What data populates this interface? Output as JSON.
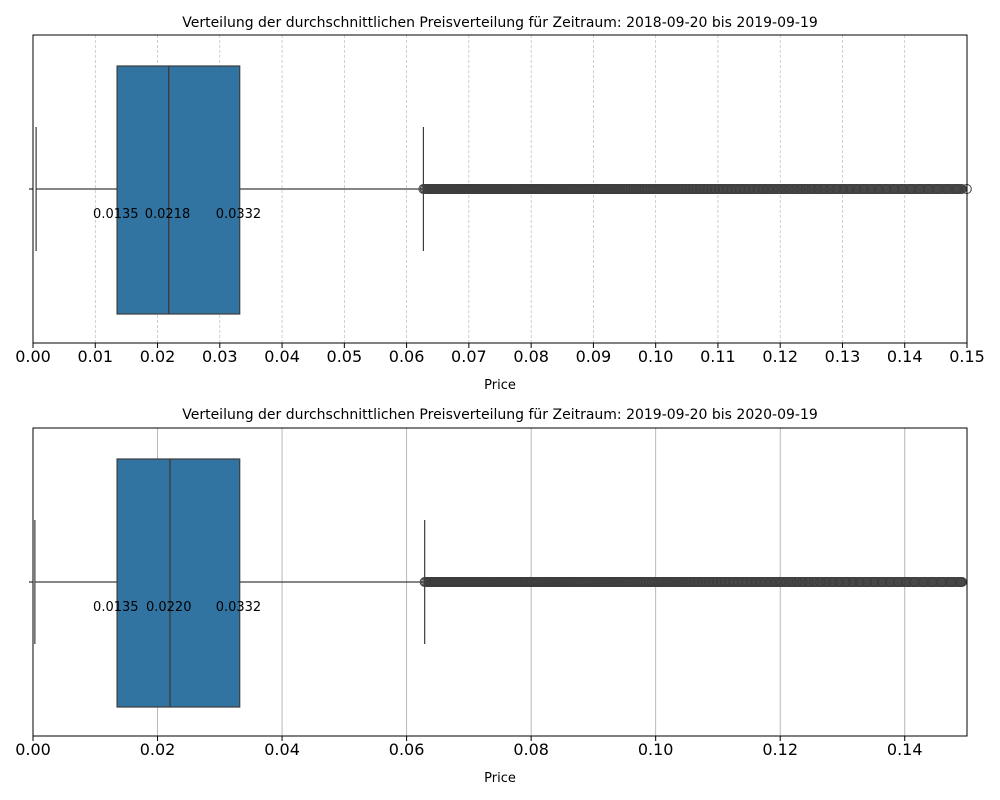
{
  "chart_data": [
    {
      "type": "box",
      "title": "Verteilung der durchschnittlichen Preisverteilung für Zeitraum: 2018-09-20 bis 2019-09-19",
      "xlabel": "Price",
      "xlim": [
        0,
        0.15
      ],
      "ticks": [
        0.0,
        0.01,
        0.02,
        0.03,
        0.04,
        0.05,
        0.06,
        0.07,
        0.08,
        0.09,
        0.1,
        0.11,
        0.12,
        0.13,
        0.14,
        0.15
      ],
      "tick_labels": [
        "0.00",
        "0.01",
        "0.02",
        "0.03",
        "0.04",
        "0.05",
        "0.06",
        "0.07",
        "0.08",
        "0.09",
        "0.10",
        "0.11",
        "0.12",
        "0.13",
        "0.14",
        "0.15"
      ],
      "grid": "dashed",
      "box_color": "#3274a1",
      "whisker_low": 0.0005,
      "q1": 0.0135,
      "median": 0.0218,
      "q3": 0.0332,
      "whisker_high": 0.0627,
      "outliers_range": [
        0.0627,
        0.15
      ],
      "annotations": [
        "0.0135",
        "0.0218",
        "0.0332"
      ]
    },
    {
      "type": "box",
      "title": "Verteilung der durchschnittlichen Preisverteilung für Zeitraum: 2019-09-20 bis 2020-09-19",
      "xlabel": "Price",
      "xlim": [
        0,
        0.15
      ],
      "ticks": [
        0.0,
        0.02,
        0.04,
        0.06,
        0.08,
        0.1,
        0.12,
        0.14
      ],
      "tick_labels": [
        "0.00",
        "0.02",
        "0.04",
        "0.06",
        "0.08",
        "0.10",
        "0.12",
        "0.14"
      ],
      "grid": "solid",
      "box_color": "#3274a1",
      "whisker_low": 0.0003,
      "q1": 0.0135,
      "median": 0.022,
      "q3": 0.0332,
      "whisker_high": 0.0629,
      "outliers_range": [
        0.0629,
        0.15
      ],
      "annotations": [
        "0.0135",
        "0.0220",
        "0.0332"
      ]
    }
  ]
}
